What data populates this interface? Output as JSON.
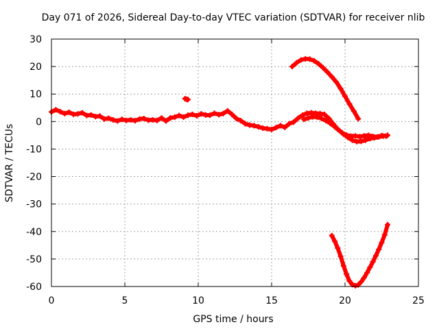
{
  "chart_data": {
    "type": "scatter",
    "title": "Day 071 of 2026, Sidereal Day-to-day VTEC variation (SDTVAR) for receiver nlib",
    "xlabel": "GPS time / hours",
    "ylabel": "SDTVAR / TECUs",
    "xlim": [
      0,
      25
    ],
    "ylim": [
      -60,
      30
    ],
    "xticks": [
      0,
      5,
      10,
      15,
      20,
      25
    ],
    "yticks": [
      30,
      20,
      10,
      0,
      -10,
      -20,
      -30,
      -40,
      -50,
      -60
    ],
    "xtick_labels": [
      "0",
      "5",
      "10",
      "15",
      "20",
      "25"
    ],
    "ytick_labels": [
      "30",
      "20",
      "10",
      "0",
      "-10",
      "-20",
      "-30",
      "-40",
      "-50",
      "-60"
    ],
    "grid": true,
    "marker_color": "#ff0000",
    "series": [
      {
        "name": "main-band",
        "points": [
          [
            0.0,
            3.5
          ],
          [
            0.3,
            4.3
          ],
          [
            0.6,
            3.6
          ],
          [
            0.9,
            2.9
          ],
          [
            1.2,
            3.4
          ],
          [
            1.5,
            2.6
          ],
          [
            1.8,
            2.8
          ],
          [
            2.1,
            3.2
          ],
          [
            2.4,
            2.2
          ],
          [
            2.7,
            2.4
          ],
          [
            3.0,
            1.8
          ],
          [
            3.3,
            2.0
          ],
          [
            3.6,
            0.9
          ],
          [
            3.9,
            1.2
          ],
          [
            4.2,
            0.6
          ],
          [
            4.5,
            0.2
          ],
          [
            4.8,
            0.8
          ],
          [
            5.1,
            0.4
          ],
          [
            5.4,
            0.6
          ],
          [
            5.7,
            0.3
          ],
          [
            6.0,
            0.9
          ],
          [
            6.3,
            1.1
          ],
          [
            6.6,
            0.5
          ],
          [
            6.9,
            0.6
          ],
          [
            7.2,
            0.4
          ],
          [
            7.5,
            1.3
          ],
          [
            7.8,
            0.2
          ],
          [
            8.1,
            1.3
          ],
          [
            8.4,
            1.6
          ],
          [
            8.7,
            2.2
          ],
          [
            9.0,
            1.6
          ],
          [
            9.3,
            2.3
          ],
          [
            9.6,
            2.6
          ],
          [
            9.9,
            2.1
          ],
          [
            10.2,
            2.8
          ],
          [
            10.5,
            2.4
          ],
          [
            10.8,
            2.3
          ],
          [
            11.1,
            3.0
          ],
          [
            11.4,
            2.5
          ],
          [
            11.7,
            2.9
          ],
          [
            12.0,
            3.9
          ],
          [
            12.3,
            2.6
          ],
          [
            12.6,
            1.1
          ],
          [
            12.9,
            0.3
          ],
          [
            13.2,
            -0.8
          ],
          [
            13.5,
            -1.3
          ],
          [
            13.8,
            -1.5
          ],
          [
            14.1,
            -1.9
          ],
          [
            14.4,
            -2.4
          ],
          [
            14.7,
            -2.6
          ],
          [
            15.0,
            -2.9
          ],
          [
            15.3,
            -2.2
          ],
          [
            15.6,
            -1.5
          ],
          [
            15.9,
            -2.1
          ],
          [
            16.2,
            -0.8
          ],
          [
            16.5,
            -0.2
          ],
          [
            16.8,
            1.2
          ],
          [
            17.1,
            2.3
          ],
          [
            17.4,
            3.0
          ],
          [
            17.7,
            3.2
          ],
          [
            18.0,
            3.0
          ],
          [
            18.3,
            2.9
          ],
          [
            18.6,
            2.6
          ],
          [
            18.9,
            1.1
          ],
          [
            19.2,
            -0.9
          ],
          [
            19.5,
            -2.8
          ],
          [
            19.8,
            -4.1
          ],
          [
            20.1,
            -4.9
          ],
          [
            20.4,
            -5.3
          ],
          [
            20.7,
            -5.2
          ],
          [
            21.0,
            -5.5
          ],
          [
            21.3,
            -5.2
          ],
          [
            21.6,
            -5.0
          ],
          [
            21.9,
            -5.4
          ],
          [
            22.2,
            -5.6
          ],
          [
            22.5,
            -5.1
          ],
          [
            22.8,
            -5.3
          ]
        ]
      },
      {
        "name": "mid-lower-band",
        "points": [
          [
            17.2,
            0.8
          ],
          [
            17.5,
            1.3
          ],
          [
            17.8,
            1.7
          ],
          [
            18.1,
            1.6
          ],
          [
            18.4,
            1.1
          ],
          [
            18.7,
            0.3
          ],
          [
            19.0,
            -0.7
          ],
          [
            19.3,
            -1.9
          ],
          [
            19.6,
            -3.2
          ],
          [
            19.9,
            -4.6
          ],
          [
            20.2,
            -5.8
          ],
          [
            20.5,
            -6.8
          ],
          [
            20.8,
            -7.3
          ],
          [
            21.1,
            -7.2
          ],
          [
            21.4,
            -6.8
          ],
          [
            21.7,
            -6.2
          ],
          [
            22.0,
            -5.9
          ],
          [
            22.3,
            -5.6
          ],
          [
            22.6,
            -5.3
          ],
          [
            22.9,
            -5.0
          ]
        ]
      },
      {
        "name": "upper-arc",
        "points": [
          [
            16.4,
            20.0
          ],
          [
            16.7,
            21.4
          ],
          [
            17.0,
            22.4
          ],
          [
            17.3,
            22.8
          ],
          [
            17.6,
            22.7
          ],
          [
            17.9,
            22.1
          ],
          [
            18.2,
            21.0
          ],
          [
            18.5,
            19.6
          ],
          [
            18.8,
            18.0
          ],
          [
            19.1,
            16.3
          ],
          [
            19.4,
            14.4
          ],
          [
            19.7,
            12.0
          ],
          [
            20.0,
            9.2
          ],
          [
            20.3,
            6.4
          ],
          [
            20.6,
            3.8
          ],
          [
            20.9,
            1.0
          ]
        ]
      },
      {
        "name": "lower-v",
        "points": [
          [
            19.1,
            -41.5
          ],
          [
            19.3,
            -43.5
          ],
          [
            19.5,
            -46.0
          ],
          [
            19.7,
            -49.0
          ],
          [
            19.9,
            -52.5
          ],
          [
            20.1,
            -55.5
          ],
          [
            20.3,
            -58.0
          ],
          [
            20.5,
            -59.3
          ],
          [
            20.7,
            -59.7
          ],
          [
            20.9,
            -59.4
          ],
          [
            21.1,
            -58.3
          ],
          [
            21.3,
            -56.8
          ],
          [
            21.5,
            -55.0
          ],
          [
            21.7,
            -53.0
          ],
          [
            21.9,
            -51.0
          ],
          [
            22.1,
            -48.8
          ],
          [
            22.3,
            -46.5
          ],
          [
            22.5,
            -44.0
          ],
          [
            22.7,
            -41.2
          ],
          [
            22.9,
            -37.5
          ]
        ]
      },
      {
        "name": "small-segment",
        "points": [
          [
            9.1,
            8.3
          ],
          [
            9.2,
            8.1
          ],
          [
            9.3,
            8.0
          ]
        ]
      }
    ]
  }
}
